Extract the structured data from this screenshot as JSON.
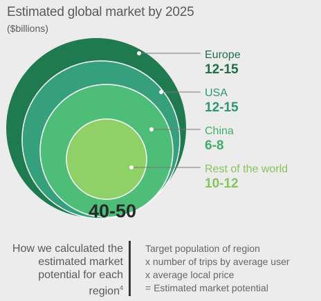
{
  "chart_data": {
    "type": "nested-bubble",
    "title": "Estimated global market by 2025",
    "subtitle": "($billions)",
    "total": "40-50",
    "series": [
      {
        "name": "Europe",
        "value": "12-15",
        "color": "#1f7a4f",
        "label_color": "#1f6e47"
      },
      {
        "name": "USA",
        "value": "12-15",
        "color": "#36a07d",
        "label_color": "#2e9670"
      },
      {
        "name": "China",
        "value": "6-8",
        "color": "#4dbd78",
        "label_color": "#42ad6a"
      },
      {
        "name": "Rest of the world",
        "value": "10-12",
        "color": "#8fd067",
        "label_color": "#86c45c"
      }
    ]
  },
  "footer": {
    "heading": "How we calculated the estimated market potential for each region",
    "footnote": "4",
    "formula": [
      "Target population of region",
      "x number of trips by average user",
      "x average local price",
      "=  Estimated market potential"
    ]
  }
}
